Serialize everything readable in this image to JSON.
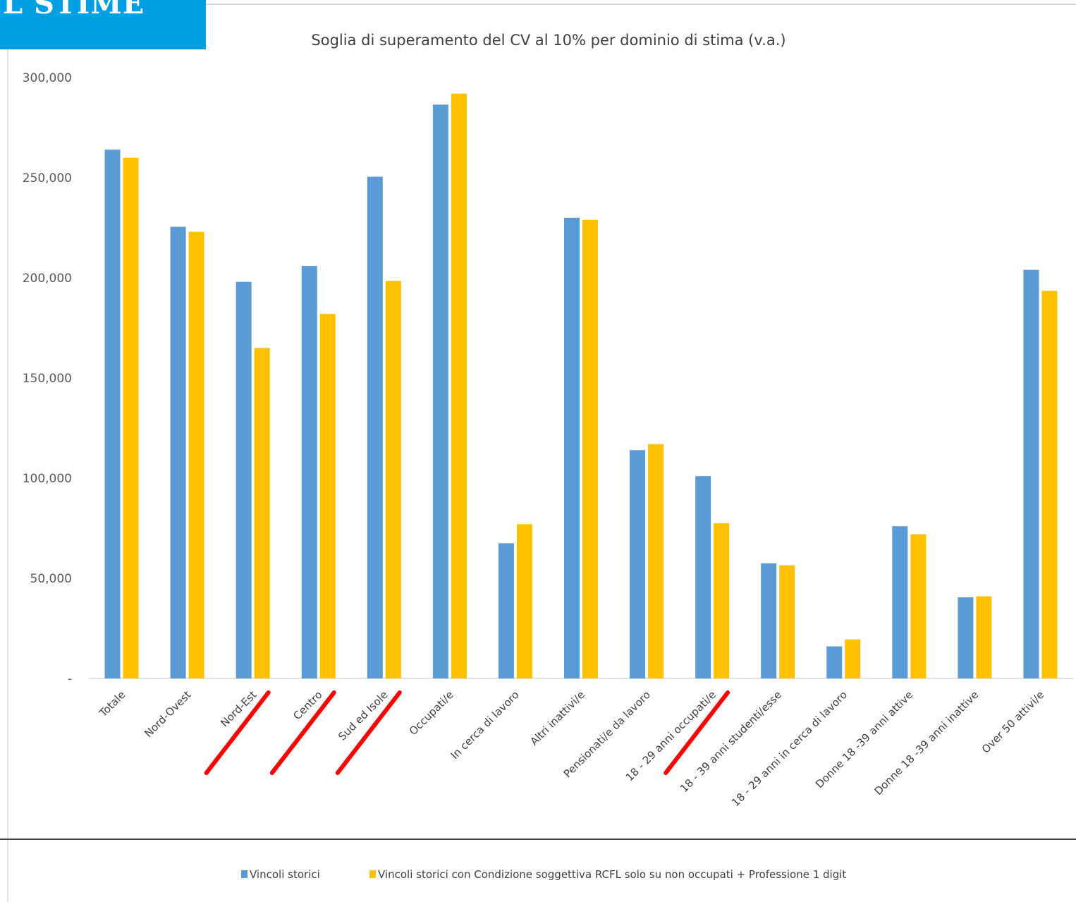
{
  "banner": {
    "text": "L STIME"
  },
  "chart_data": {
    "type": "bar",
    "title": "Soglia di superamento del CV al 10% per dominio di stima (v.a.)",
    "xlabel": "",
    "ylabel": "",
    "ylim": [
      0,
      300000
    ],
    "yticks": [
      0,
      50000,
      100000,
      150000,
      200000,
      250000,
      300000
    ],
    "ytick_labels": [
      "-",
      "50,000",
      "100,000",
      "150,000",
      "200,000",
      "250,000",
      "300,000"
    ],
    "grid": false,
    "legend_position": "bottom",
    "categories": [
      "Totale",
      "Nord-Ovest",
      "Nord-Est",
      "Centro",
      "Sud ed Isole",
      "Occupati/e",
      "In cerca di lavoro",
      "Altri inattivi/e",
      "Pensionati/e da lavoro",
      "18 - 29 anni occupati/e",
      "18 - 39 anni studenti/esse",
      "18 - 29 anni in cerca di lavoro",
      "Donne 18 -39 anni attive",
      "Donne 18 -39 anni inattive",
      "Over 50 attivi/e"
    ],
    "series": [
      {
        "name": "Vincoli storici",
        "color": "#5b9bd5",
        "values": [
          264000,
          225500,
          198000,
          206000,
          250500,
          286500,
          67500,
          230000,
          114000,
          101000,
          57500,
          16000,
          76000,
          40500,
          204000
        ]
      },
      {
        "name": "Vincoli storici con Condizione soggettiva RCFL solo su non occupati + Professione 1 digit",
        "color": "#ffc000",
        "values": [
          260000,
          223000,
          165000,
          182000,
          198500,
          292000,
          77000,
          229000,
          117000,
          77500,
          56500,
          19500,
          72000,
          41000,
          193500
        ]
      }
    ],
    "annotations": {
      "marked_categories": [
        "Nord-Est",
        "Centro",
        "Sud ed Isole",
        "18 - 29 anni occupati/e"
      ],
      "mark_color": "#ff0000",
      "mark_shape": "slash"
    }
  }
}
